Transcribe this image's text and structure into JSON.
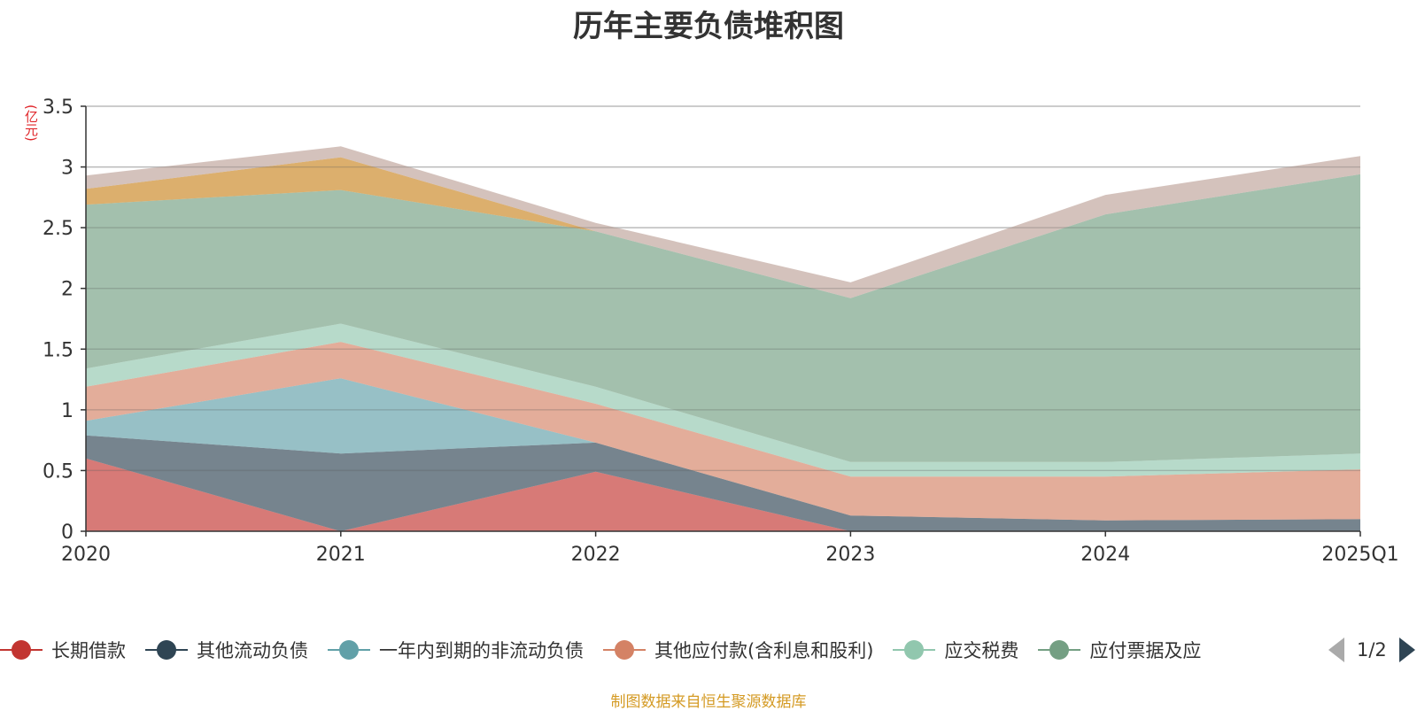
{
  "title": "历年主要负债堆积图",
  "unit": "(亿元)",
  "source_note": "制图数据来自恒生聚源数据库",
  "legend_page": "1/2",
  "chart_data": {
    "type": "area",
    "stacked": true,
    "title": "历年主要负债堆积图",
    "ylabel": "(亿元)",
    "categories": [
      "2020",
      "2021",
      "2022",
      "2023",
      "2024",
      "2025Q1"
    ],
    "ylim": [
      0,
      3.5
    ],
    "yticks": [
      0,
      0.5,
      1,
      1.5,
      2,
      2.5,
      3,
      3.5
    ],
    "grid": true,
    "legend_position": "bottom",
    "series": [
      {
        "name": "长期借款",
        "color": "#c23531",
        "values": [
          0.6,
          0,
          0.49,
          0,
          0,
          0
        ]
      },
      {
        "name": "其他流动负债",
        "color": "#2f4554",
        "values": [
          0.19,
          0.64,
          0.24,
          0.13,
          0.09,
          0.1
        ]
      },
      {
        "name": "一年内到期的非流动负债",
        "color": "#61a0a8",
        "values": [
          0.12,
          0.62,
          0,
          0,
          0,
          0
        ]
      },
      {
        "name": "其他应付款(含利息和股利)",
        "color": "#d48265",
        "values": [
          0.28,
          0.3,
          0.32,
          0.32,
          0.36,
          0.41
        ]
      },
      {
        "name": "应交税费",
        "color": "#91c7ae",
        "values": [
          0.15,
          0.15,
          0.14,
          0.12,
          0.12,
          0.13
        ]
      },
      {
        "name": "应付票据及应付账款",
        "legend_label": "应付票据及应",
        "color": "#749f83",
        "values": [
          1.35,
          1.1,
          1.28,
          1.35,
          2.04,
          2.3
        ]
      },
      {
        "color": "#ca8622",
        "values": [
          0.13,
          0.27,
          0,
          0,
          0,
          0
        ]
      },
      {
        "color": "#bda29a",
        "values": [
          0.11,
          0.09,
          0.07,
          0.13,
          0.16,
          0.15
        ]
      }
    ]
  }
}
